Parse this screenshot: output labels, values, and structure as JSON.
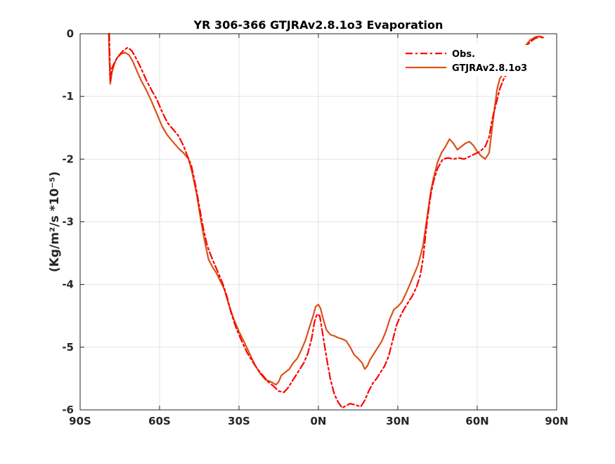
{
  "chart_data": {
    "type": "line",
    "title": "YR 306-366 GTJRAv2.8.1o3 Evaporation",
    "xlabel": "",
    "ylabel": "(Kg/m²/s *10⁻⁵)",
    "xlim": [
      -90,
      90
    ],
    "ylim": [
      -6,
      0
    ],
    "xticks": [
      {
        "value": -90,
        "label": "90S"
      },
      {
        "value": -60,
        "label": "60S"
      },
      {
        "value": -30,
        "label": "30S"
      },
      {
        "value": 0,
        "label": "0N"
      },
      {
        "value": 30,
        "label": "30N"
      },
      {
        "value": 60,
        "label": "60N"
      },
      {
        "value": 90,
        "label": "90N"
      }
    ],
    "yticks": [
      {
        "value": 0,
        "label": "0"
      },
      {
        "value": -1,
        "label": "-1"
      },
      {
        "value": -2,
        "label": "-2"
      },
      {
        "value": -3,
        "label": "-3"
      },
      {
        "value": -4,
        "label": "-4"
      },
      {
        "value": -5,
        "label": "-5"
      },
      {
        "value": -6,
        "label": "-6"
      }
    ],
    "grid": true,
    "legend_position": "top-right",
    "series": [
      {
        "name": "Obs.",
        "color": "#ff0000",
        "style": "dash-dot",
        "points": [
          [
            -79.0,
            0.0
          ],
          [
            -78.6,
            -0.75
          ],
          [
            -78.0,
            -0.55
          ],
          [
            -76.5,
            -0.42
          ],
          [
            -75.0,
            -0.33
          ],
          [
            -73.5,
            -0.26
          ],
          [
            -72.0,
            -0.22
          ],
          [
            -70.5,
            -0.27
          ],
          [
            -69.0,
            -0.38
          ],
          [
            -67.0,
            -0.55
          ],
          [
            -65.0,
            -0.74
          ],
          [
            -63.0,
            -0.9
          ],
          [
            -61.0,
            -1.05
          ],
          [
            -59.0,
            -1.25
          ],
          [
            -57.0,
            -1.42
          ],
          [
            -55.0,
            -1.52
          ],
          [
            -53.0,
            -1.62
          ],
          [
            -51.0,
            -1.78
          ],
          [
            -49.5,
            -1.95
          ],
          [
            -48.0,
            -2.1
          ],
          [
            -46.5,
            -2.4
          ],
          [
            -45.0,
            -2.75
          ],
          [
            -43.5,
            -3.1
          ],
          [
            -42.0,
            -3.38
          ],
          [
            -40.5,
            -3.55
          ],
          [
            -39.0,
            -3.7
          ],
          [
            -37.5,
            -3.85
          ],
          [
            -36.0,
            -4.0
          ],
          [
            -34.5,
            -4.2
          ],
          [
            -33.0,
            -4.45
          ],
          [
            -31.0,
            -4.7
          ],
          [
            -29.0,
            -4.9
          ],
          [
            -27.0,
            -5.08
          ],
          [
            -25.0,
            -5.22
          ],
          [
            -23.0,
            -5.35
          ],
          [
            -21.0,
            -5.45
          ],
          [
            -19.0,
            -5.55
          ],
          [
            -17.0,
            -5.62
          ],
          [
            -15.0,
            -5.7
          ],
          [
            -13.0,
            -5.72
          ],
          [
            -11.5,
            -5.65
          ],
          [
            -10.0,
            -5.55
          ],
          [
            -8.5,
            -5.45
          ],
          [
            -7.0,
            -5.35
          ],
          [
            -5.5,
            -5.25
          ],
          [
            -4.0,
            -5.1
          ],
          [
            -2.5,
            -4.85
          ],
          [
            -1.5,
            -4.6
          ],
          [
            -0.5,
            -4.47
          ],
          [
            0.5,
            -4.5
          ],
          [
            1.5,
            -4.75
          ],
          [
            3.0,
            -5.15
          ],
          [
            4.5,
            -5.5
          ],
          [
            6.0,
            -5.75
          ],
          [
            7.5,
            -5.88
          ],
          [
            9.0,
            -5.97
          ],
          [
            10.5,
            -5.93
          ],
          [
            12.0,
            -5.9
          ],
          [
            14.0,
            -5.92
          ],
          [
            16.0,
            -5.95
          ],
          [
            17.5,
            -5.85
          ],
          [
            19.0,
            -5.7
          ],
          [
            20.5,
            -5.58
          ],
          [
            22.0,
            -5.5
          ],
          [
            23.5,
            -5.4
          ],
          [
            25.0,
            -5.3
          ],
          [
            26.5,
            -5.15
          ],
          [
            28.0,
            -4.9
          ],
          [
            29.5,
            -4.65
          ],
          [
            31.0,
            -4.5
          ],
          [
            32.5,
            -4.38
          ],
          [
            34.0,
            -4.28
          ],
          [
            35.5,
            -4.18
          ],
          [
            37.0,
            -4.05
          ],
          [
            38.5,
            -3.85
          ],
          [
            39.5,
            -3.6
          ],
          [
            40.5,
            -3.2
          ],
          [
            41.5,
            -2.85
          ],
          [
            42.5,
            -2.55
          ],
          [
            43.5,
            -2.35
          ],
          [
            45.0,
            -2.15
          ],
          [
            47.0,
            -2.0
          ],
          [
            49.0,
            -1.98
          ],
          [
            51.0,
            -2.0
          ],
          [
            53.0,
            -1.98
          ],
          [
            55.0,
            -2.0
          ],
          [
            57.0,
            -1.96
          ],
          [
            59.0,
            -1.92
          ],
          [
            61.0,
            -1.88
          ],
          [
            63.0,
            -1.8
          ],
          [
            64.5,
            -1.65
          ],
          [
            65.5,
            -1.4
          ],
          [
            66.5,
            -1.22
          ],
          [
            67.5,
            -1.05
          ],
          [
            68.5,
            -0.88
          ],
          [
            70.0,
            -0.72
          ],
          [
            72.0,
            -0.58
          ],
          [
            74.0,
            -0.45
          ],
          [
            76.0,
            -0.33
          ],
          [
            78.0,
            -0.22
          ],
          [
            80.0,
            -0.13
          ],
          [
            82.0,
            -0.07
          ],
          [
            84.0,
            -0.05
          ],
          [
            85.5,
            -0.08
          ]
        ]
      },
      {
        "name": "GTJRAv2.8.1o3",
        "color": "#d95319",
        "style": "solid",
        "points": [
          [
            -79.2,
            0.0
          ],
          [
            -78.9,
            -0.45
          ],
          [
            -78.6,
            -0.8
          ],
          [
            -78.0,
            -0.62
          ],
          [
            -77.0,
            -0.47
          ],
          [
            -76.0,
            -0.38
          ],
          [
            -74.5,
            -0.32
          ],
          [
            -73.0,
            -0.3
          ],
          [
            -71.5,
            -0.34
          ],
          [
            -70.0,
            -0.45
          ],
          [
            -68.5,
            -0.6
          ],
          [
            -67.0,
            -0.74
          ],
          [
            -65.0,
            -0.9
          ],
          [
            -63.0,
            -1.08
          ],
          [
            -61.0,
            -1.28
          ],
          [
            -59.0,
            -1.48
          ],
          [
            -57.0,
            -1.62
          ],
          [
            -55.0,
            -1.72
          ],
          [
            -53.0,
            -1.82
          ],
          [
            -51.0,
            -1.9
          ],
          [
            -49.0,
            -2.0
          ],
          [
            -47.5,
            -2.25
          ],
          [
            -46.0,
            -2.55
          ],
          [
            -44.5,
            -2.95
          ],
          [
            -43.0,
            -3.3
          ],
          [
            -41.5,
            -3.6
          ],
          [
            -40.0,
            -3.72
          ],
          [
            -38.5,
            -3.82
          ],
          [
            -37.0,
            -3.95
          ],
          [
            -35.5,
            -4.08
          ],
          [
            -34.0,
            -4.3
          ],
          [
            -32.0,
            -4.55
          ],
          [
            -30.0,
            -4.75
          ],
          [
            -28.0,
            -4.92
          ],
          [
            -26.0,
            -5.1
          ],
          [
            -24.0,
            -5.28
          ],
          [
            -22.0,
            -5.42
          ],
          [
            -20.0,
            -5.52
          ],
          [
            -18.0,
            -5.55
          ],
          [
            -16.0,
            -5.6
          ],
          [
            -15.0,
            -5.55
          ],
          [
            -14.0,
            -5.45
          ],
          [
            -12.5,
            -5.4
          ],
          [
            -11.0,
            -5.35
          ],
          [
            -9.5,
            -5.25
          ],
          [
            -8.0,
            -5.18
          ],
          [
            -6.5,
            -5.05
          ],
          [
            -5.0,
            -4.9
          ],
          [
            -3.5,
            -4.7
          ],
          [
            -2.0,
            -4.5
          ],
          [
            -1.0,
            -4.35
          ],
          [
            0.0,
            -4.32
          ],
          [
            0.8,
            -4.38
          ],
          [
            1.8,
            -4.55
          ],
          [
            3.0,
            -4.72
          ],
          [
            4.5,
            -4.8
          ],
          [
            6.0,
            -4.82
          ],
          [
            7.5,
            -4.85
          ],
          [
            9.0,
            -4.87
          ],
          [
            10.5,
            -4.9
          ],
          [
            12.0,
            -5.0
          ],
          [
            13.5,
            -5.12
          ],
          [
            15.0,
            -5.18
          ],
          [
            16.5,
            -5.25
          ],
          [
            17.5,
            -5.35
          ],
          [
            18.5,
            -5.3
          ],
          [
            19.5,
            -5.2
          ],
          [
            21.0,
            -5.1
          ],
          [
            22.5,
            -5.0
          ],
          [
            24.0,
            -4.9
          ],
          [
            25.5,
            -4.75
          ],
          [
            27.0,
            -4.55
          ],
          [
            28.5,
            -4.4
          ],
          [
            30.0,
            -4.35
          ],
          [
            31.5,
            -4.28
          ],
          [
            33.0,
            -4.15
          ],
          [
            34.5,
            -4.0
          ],
          [
            36.0,
            -3.85
          ],
          [
            37.5,
            -3.7
          ],
          [
            38.5,
            -3.55
          ],
          [
            39.5,
            -3.38
          ],
          [
            40.5,
            -3.1
          ],
          [
            41.5,
            -2.8
          ],
          [
            42.5,
            -2.5
          ],
          [
            43.5,
            -2.3
          ],
          [
            45.0,
            -2.05
          ],
          [
            46.5,
            -1.9
          ],
          [
            48.0,
            -1.8
          ],
          [
            49.5,
            -1.68
          ],
          [
            51.0,
            -1.75
          ],
          [
            52.5,
            -1.85
          ],
          [
            54.0,
            -1.8
          ],
          [
            55.5,
            -1.75
          ],
          [
            57.0,
            -1.72
          ],
          [
            58.5,
            -1.78
          ],
          [
            60.0,
            -1.88
          ],
          [
            61.5,
            -1.95
          ],
          [
            63.0,
            -2.0
          ],
          [
            64.5,
            -1.9
          ],
          [
            65.5,
            -1.55
          ],
          [
            66.5,
            -1.2
          ],
          [
            67.5,
            -0.88
          ],
          [
            68.5,
            -0.72
          ],
          [
            70.0,
            -0.62
          ],
          [
            71.5,
            -0.58
          ],
          [
            73.0,
            -0.55
          ],
          [
            74.5,
            -0.45
          ],
          [
            76.0,
            -0.32
          ],
          [
            78.0,
            -0.2
          ],
          [
            80.0,
            -0.1
          ],
          [
            82.0,
            -0.05
          ],
          [
            83.5,
            -0.04
          ],
          [
            85.0,
            -0.06
          ]
        ]
      }
    ]
  }
}
